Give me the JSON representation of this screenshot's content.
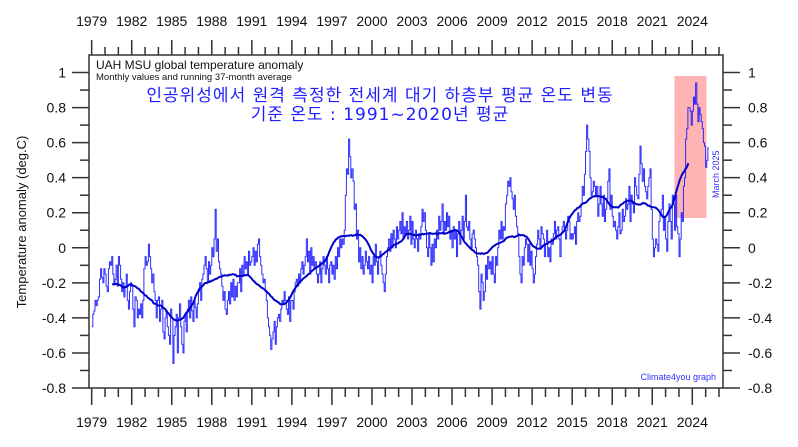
{
  "chart_data": {
    "type": "line",
    "title": "UAH MSU global temperature anomaly",
    "subtitle": "Monthly values and running 37-month average",
    "annotation_korean_1": "인공위성에서 원격 측정한 전세계 대기 하층부 평균 온도 변동",
    "annotation_korean_2": "기준 온도 : 1991~2020년 평균",
    "last_month_label": "March 2025",
    "credit": "Climate4you graph",
    "ylabel": "Temperature anomaly (deg.C)",
    "xlabel": "",
    "xlim": [
      1978.8,
      2026.3
    ],
    "ylim": [
      -0.8,
      1.1
    ],
    "x_ticks": [
      "1979",
      "1982",
      "1985",
      "1988",
      "1991",
      "1994",
      "1997",
      "2000",
      "2003",
      "2006",
      "2009",
      "2012",
      "2015",
      "2018",
      "2021",
      "2024"
    ],
    "y_ticks": [
      "-0.8",
      "-0.6",
      "-0.4",
      "-0.2",
      "0",
      "0.2",
      "0.4",
      "0.6",
      "0.8",
      "1"
    ],
    "grid": false,
    "start_year": 1979,
    "running_mean_window_months": 37,
    "colors": {
      "monthly": "#1a1aff",
      "running": "#0000c8",
      "highlight": "#ffb3b3",
      "text_annotation": "#2020ff"
    },
    "highlight_region": {
      "x": [
        2022.66,
        2025.06
      ],
      "y": [
        0.17,
        0.98
      ]
    },
    "series": [
      {
        "name": "Monthly values",
        "values": [
          -0.45,
          -0.38,
          -0.36,
          -0.3,
          -0.33,
          -0.3,
          -0.28,
          -0.18,
          -0.12,
          -0.17,
          -0.2,
          -0.12,
          -0.15,
          -0.22,
          -0.25,
          -0.12,
          -0.08,
          -0.1,
          -0.05,
          -0.15,
          -0.2,
          -0.18,
          -0.1,
          -0.22,
          -0.05,
          -0.1,
          -0.18,
          -0.25,
          -0.2,
          -0.28,
          -0.22,
          -0.15,
          -0.3,
          -0.35,
          -0.25,
          -0.2,
          -0.22,
          -0.35,
          -0.45,
          -0.28,
          -0.3,
          -0.4,
          -0.35,
          -0.38,
          -0.32,
          -0.4,
          -0.3,
          -0.12,
          -0.05,
          -0.1,
          -0.08,
          0.02,
          -0.05,
          -0.12,
          -0.2,
          -0.15,
          -0.25,
          -0.3,
          -0.4,
          -0.3,
          -0.28,
          -0.42,
          -0.35,
          -0.3,
          -0.48,
          -0.52,
          -0.4,
          -0.36,
          -0.45,
          -0.5,
          -0.55,
          -0.35,
          -0.4,
          -0.66,
          -0.5,
          -0.45,
          -0.38,
          -0.6,
          -0.4,
          -0.32,
          -0.45,
          -0.55,
          -0.6,
          -0.42,
          -0.38,
          -0.48,
          -0.35,
          -0.3,
          -0.4,
          -0.28,
          -0.36,
          -0.42,
          -0.3,
          -0.34,
          -0.4,
          -0.32,
          -0.25,
          -0.2,
          -0.3,
          -0.18,
          -0.15,
          -0.1,
          -0.05,
          -0.12,
          -0.2,
          -0.08,
          -0.15,
          -0.1,
          0.0,
          -0.05,
          0.05,
          0.22,
          -0.02,
          0.05,
          -0.08,
          -0.12,
          -0.15,
          -0.22,
          -0.3,
          -0.25,
          -0.35,
          -0.38,
          -0.3,
          -0.25,
          -0.32,
          -0.2,
          -0.28,
          -0.18,
          -0.3,
          -0.22,
          -0.28,
          -0.2,
          -0.2,
          -0.12,
          -0.25,
          -0.1,
          -0.15,
          -0.05,
          -0.12,
          -0.08,
          -0.15,
          -0.02,
          -0.1,
          -0.08,
          -0.05,
          0.0,
          -0.1,
          -0.02,
          -0.08,
          0.02,
          0.05,
          -0.05,
          -0.1,
          -0.15,
          -0.2,
          -0.18,
          -0.25,
          -0.3,
          -0.4,
          -0.45,
          -0.5,
          -0.58,
          -0.52,
          -0.48,
          -0.42,
          -0.55,
          -0.45,
          -0.4,
          -0.38,
          -0.42,
          -0.35,
          -0.3,
          -0.32,
          -0.25,
          -0.3,
          -0.35,
          -0.38,
          -0.28,
          -0.42,
          -0.3,
          -0.3,
          -0.35,
          -0.25,
          -0.2,
          -0.18,
          -0.22,
          -0.15,
          -0.2,
          -0.12,
          -0.08,
          -0.15,
          -0.1,
          -0.05,
          0.05,
          -0.08,
          -0.02,
          -0.15,
          0.0,
          -0.1,
          -0.05,
          -0.12,
          -0.08,
          -0.15,
          -0.2,
          -0.15,
          -0.08,
          -0.2,
          -0.12,
          -0.05,
          -0.1,
          -0.15,
          -0.05,
          -0.12,
          -0.2,
          -0.1,
          -0.08,
          -0.15,
          -0.1,
          -0.18,
          -0.05,
          -0.12,
          0.0,
          -0.05,
          0.05,
          0.0,
          0.05,
          0.02,
          0.1,
          0.3,
          0.45,
          0.42,
          0.62,
          0.52,
          0.4,
          0.45,
          0.38,
          0.22,
          0.25,
          0.05,
          0.1,
          -0.08,
          0.0,
          -0.12,
          -0.05,
          -0.15,
          -0.1,
          -0.02,
          -0.08,
          -0.12,
          -0.05,
          -0.15,
          -0.1,
          -0.2,
          -0.05,
          -0.1,
          0.02,
          -0.08,
          -0.15,
          -0.05,
          -0.02,
          -0.1,
          -0.15,
          -0.2,
          -0.25,
          -0.15,
          -0.05,
          0.0,
          0.05,
          -0.02,
          0.08,
          0.0,
          0.1,
          0.05,
          0.0,
          0.12,
          0.05,
          0.1,
          0.15,
          0.08,
          0.2,
          0.05,
          0.12,
          0.08,
          0.15,
          0.05,
          0.1,
          0.18,
          0.02,
          0.15,
          0.05,
          0.0,
          0.1,
          0.05,
          -0.02,
          0.08,
          0.05,
          0.12,
          0.22,
          0.15,
          0.2,
          0.1,
          0.0,
          -0.05,
          0.08,
          0.0,
          -0.1,
          0.02,
          -0.08,
          0.05,
          0.0,
          0.1,
          0.05,
          0.18,
          0.1,
          0.15,
          0.25,
          0.08,
          0.15,
          0.1,
          0.2,
          0.12,
          0.18,
          0.05,
          0.1,
          0.0,
          0.12,
          0.05,
          0.1,
          -0.05,
          0.08,
          0.15,
          0.02,
          0.1,
          0.18,
          0.05,
          0.15,
          0.3,
          0.12,
          0.1,
          0.15,
          0.05,
          0.0,
          0.08,
          0.1,
          0.05,
          0.0,
          -0.05,
          -0.1,
          -0.25,
          -0.35,
          -0.15,
          -0.2,
          -0.3,
          -0.25,
          -0.1,
          -0.18,
          -0.05,
          -0.12,
          -0.08,
          -0.15,
          -0.05,
          -0.15,
          -0.2,
          -0.05,
          -0.1,
          0.0,
          0.1,
          0.05,
          0.15,
          0.05,
          0.12,
          0.1,
          0.25,
          0.3,
          0.38,
          0.35,
          0.4,
          0.32,
          0.28,
          0.22,
          0.3,
          0.18,
          0.12,
          0.08,
          -0.05,
          -0.15,
          -0.2,
          -0.05,
          -0.1,
          0.0,
          0.05,
          0.02,
          -0.08,
          0.02,
          -0.1,
          -0.02,
          -0.12,
          -0.2,
          -0.15,
          -0.05,
          0.02,
          0.1,
          0.05,
          0.0,
          0.12,
          0.08,
          0.05,
          -0.05,
          0.02,
          0.1,
          -0.05,
          0.0,
          -0.08,
          0.05,
          0.02,
          0.08,
          0.15,
          0.05,
          0.1,
          0.12,
          0.05,
          -0.05,
          0.08,
          0.12,
          0.15,
          0.1,
          0.05,
          0.1,
          0.18,
          0.15,
          0.05,
          0.08,
          0.05,
          0.08,
          0.12,
          0.02,
          0.15,
          0.2,
          0.15,
          0.18,
          0.25,
          0.35,
          0.3,
          0.42,
          0.55,
          0.7,
          0.62,
          0.55,
          0.4,
          0.3,
          0.32,
          0.38,
          0.35,
          0.3,
          0.35,
          0.18,
          0.25,
          0.35,
          0.25,
          0.18,
          0.3,
          0.15,
          0.22,
          0.28,
          0.38,
          0.45,
          0.22,
          0.3,
          0.18,
          0.12,
          0.15,
          0.1,
          0.05,
          0.12,
          0.2,
          0.08,
          0.1,
          0.22,
          0.15,
          0.18,
          0.28,
          0.22,
          0.25,
          0.35,
          0.15,
          0.3,
          0.25,
          0.2,
          0.4,
          0.35,
          0.3,
          0.28,
          0.42,
          0.58,
          0.48,
          0.38,
          0.45,
          0.35,
          0.32,
          0.28,
          0.35,
          0.4,
          0.45,
          0.22,
          0.05,
          -0.05,
          0.0,
          0.05,
          0.02,
          -0.02,
          0.15,
          0.2,
          0.22,
          0.3,
          0.1,
          0.18,
          0.05,
          -0.02,
          0.15,
          0.25,
          0.15,
          0.05,
          0.3,
          0.25,
          0.1,
          0.3,
          0.12,
          0.08,
          -0.05,
          0.05,
          0.2,
          0.15,
          0.35,
          0.4,
          0.62,
          0.68,
          0.8,
          0.8,
          0.78,
          0.7,
          0.78,
          0.86,
          0.82,
          0.94,
          0.82,
          0.72,
          0.8,
          0.76,
          0.72,
          0.68,
          0.6,
          0.58,
          0.46,
          0.5,
          0.57
        ]
      }
    ]
  }
}
